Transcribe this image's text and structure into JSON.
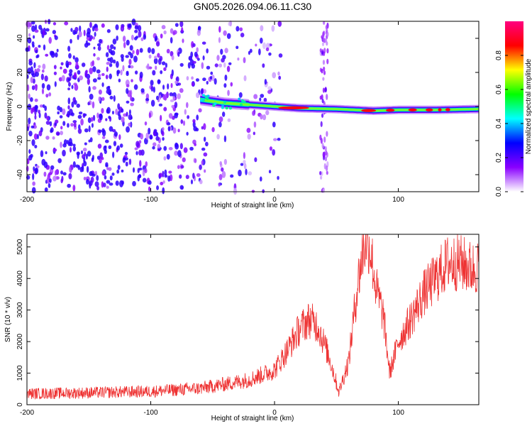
{
  "title": "GN05.2026.094.06.11.C30",
  "chart_data": [
    {
      "type": "heatmap",
      "title": "GN05.2026.094.06.11.C30",
      "xlabel": "Height of straight line (km)",
      "ylabel": "Frequency (Hz)",
      "xlim": [
        -200,
        165
      ],
      "ylim": [
        -50,
        50
      ],
      "xticks": [
        -200,
        -100,
        0,
        100
      ],
      "yticks": [
        -40,
        -20,
        0,
        20,
        40
      ],
      "colorbar": {
        "label": "Normalized spectral amplitude",
        "range": [
          0,
          1
        ],
        "ticks": [
          0.0,
          0.2,
          0.4,
          0.6,
          0.8
        ],
        "colors": [
          "#ffffff",
          "#8a00ff",
          "#0000ff",
          "#00ffff",
          "#00ff00",
          "#ffff00",
          "#ff0000",
          "#ff0080"
        ]
      },
      "features": [
        {
          "name": "noise region",
          "x_range": [
            -200,
            -20
          ],
          "freq_range": [
            -50,
            50
          ],
          "amplitude": 0.1
        },
        {
          "name": "signal trace",
          "x_range": [
            -60,
            165
          ],
          "freq": [
            [
              -60,
              4
            ],
            [
              -40,
              2
            ],
            [
              -20,
              1
            ],
            [
              0,
              0
            ],
            [
              20,
              -1
            ],
            [
              50,
              -1.5
            ],
            [
              80,
              -2.5
            ],
            [
              100,
              -2
            ],
            [
              130,
              -2
            ],
            [
              165,
              -1.5
            ]
          ],
          "amplitude": 0.9
        },
        {
          "name": "vertical band",
          "x": 40,
          "freq_range": [
            -50,
            50
          ],
          "amplitude": 0.2
        }
      ]
    },
    {
      "type": "line",
      "xlabel": "Height of straight line (km)",
      "ylabel": "SNR (10 * v/v)",
      "xlim": [
        -200,
        165
      ],
      "ylim": [
        0,
        5400
      ],
      "xticks": [
        -200,
        -100,
        0,
        100
      ],
      "yticks": [
        0,
        1000,
        2000,
        3000,
        4000,
        5000
      ],
      "color": "#ee3333",
      "series": [
        {
          "name": "SNR",
          "x": [
            -200,
            -150,
            -100,
            -60,
            -40,
            -20,
            0,
            10,
            20,
            28,
            35,
            45,
            52,
            60,
            67,
            72,
            75,
            78,
            82,
            88,
            93,
            100,
            110,
            120,
            130,
            140,
            150,
            160,
            165
          ],
          "values": [
            350,
            380,
            420,
            520,
            650,
            800,
            1100,
            1700,
            2400,
            2700,
            2500,
            1400,
            400,
            1400,
            3800,
            5000,
            5300,
            4800,
            3700,
            2800,
            1000,
            2000,
            2700,
            3500,
            4000,
            4500,
            4500,
            4300,
            4400
          ]
        }
      ]
    }
  ]
}
